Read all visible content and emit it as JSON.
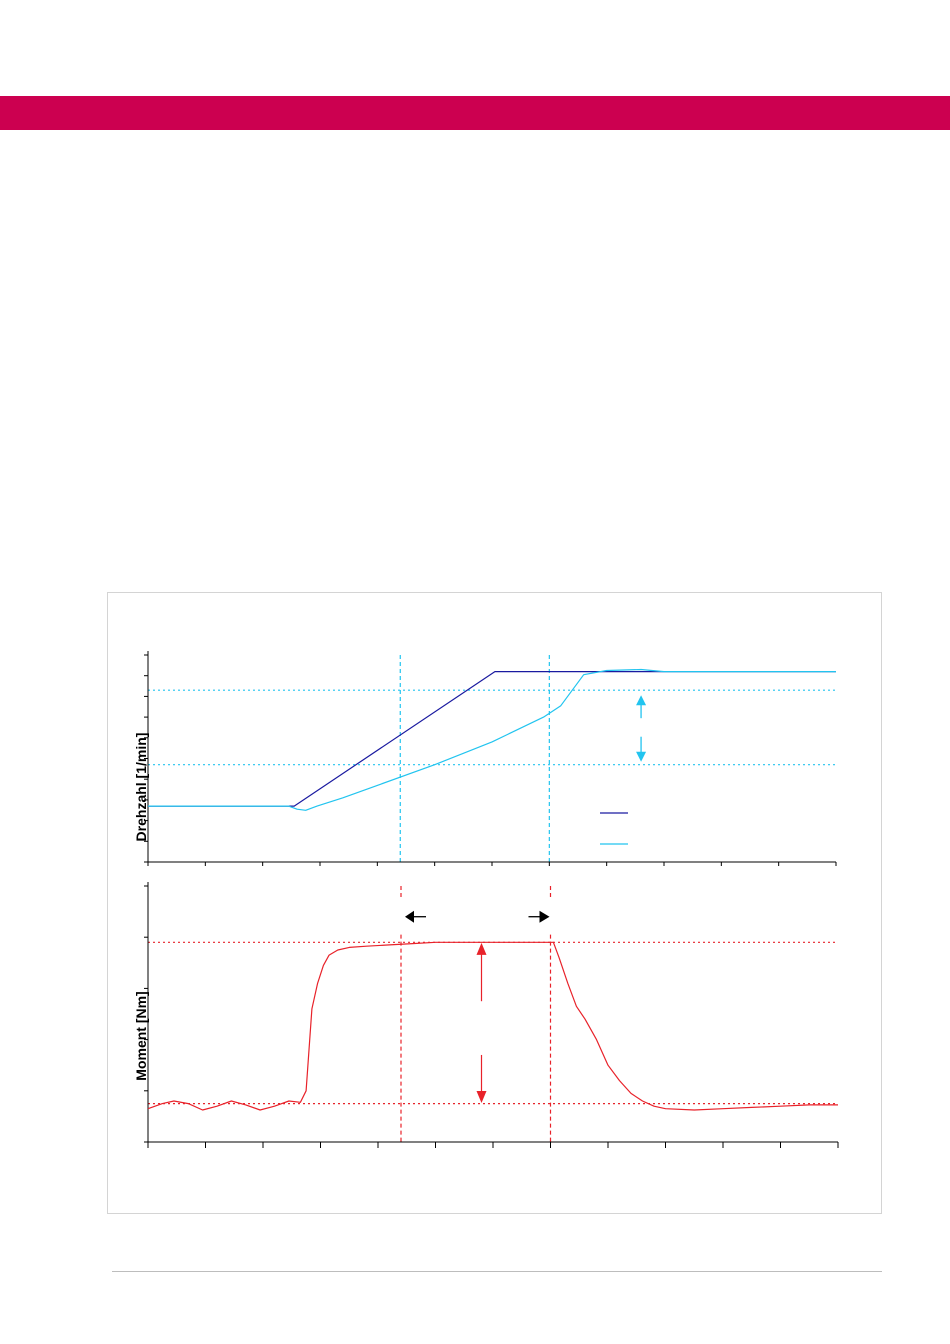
{
  "colors": {
    "brand": "#cc0050",
    "setpoint_speed": "#1a1aa0",
    "actual_speed": "#22c4ef",
    "torque": "#e8222a",
    "marker": "#000000"
  },
  "chart_data": [
    {
      "type": "line",
      "ylabel": "Drehzahl [1/min]",
      "xlabel": "",
      "xlim": [
        0,
        12
      ],
      "ylim": [
        0,
        1
      ],
      "grid": false,
      "legend": "middle-right (entries without text)",
      "series": [
        {
          "color": "#1a1aa0",
          "x": [
            0,
            2.55,
            6.05,
            12
          ],
          "y": [
            0.27,
            0.27,
            0.92,
            0.92
          ]
        },
        {
          "color": "#22c4ef",
          "x": [
            0,
            2.45,
            2.6,
            2.75,
            2.95,
            3.4,
            4.0,
            5.0,
            6.0,
            6.9,
            7.2,
            7.6,
            8.0,
            8.6,
            9.0,
            12
          ],
          "y": [
            0.27,
            0.27,
            0.255,
            0.25,
            0.27,
            0.31,
            0.37,
            0.47,
            0.58,
            0.7,
            0.755,
            0.905,
            0.925,
            0.93,
            0.92,
            0.92
          ]
        }
      ],
      "reference_lines": {
        "horizontal": [
          0.83,
          0.47
        ],
        "vertical": [
          4.4,
          7.0
        ]
      },
      "annotations": [
        {
          "type": "double-arrow",
          "x": 8.6,
          "y_from": 0.47,
          "y_to": 0.83
        }
      ]
    },
    {
      "type": "line",
      "ylabel": "Moment [Nm]",
      "xlabel": "",
      "xlim": [
        0,
        12
      ],
      "ylim": [
        0,
        1
      ],
      "grid": false,
      "series": [
        {
          "color": "#e8222a",
          "x": [
            0,
            0.25,
            0.45,
            0.7,
            0.95,
            1.2,
            1.45,
            1.7,
            1.95,
            2.2,
            2.45,
            2.65,
            2.75,
            2.85,
            2.95,
            3.05,
            3.15,
            3.3,
            3.5,
            3.8,
            4.2,
            4.6,
            5.0,
            5.5,
            6.0,
            6.5,
            7.0,
            7.05,
            7.15,
            7.3,
            7.45,
            7.6,
            7.8,
            8.0,
            8.2,
            8.4,
            8.6,
            8.8,
            9.0,
            9.5,
            10.0,
            10.5,
            11.0,
            11.5,
            12.0
          ],
          "y": [
            0.13,
            0.15,
            0.16,
            0.15,
            0.125,
            0.14,
            0.16,
            0.145,
            0.125,
            0.14,
            0.16,
            0.155,
            0.2,
            0.52,
            0.62,
            0.69,
            0.73,
            0.75,
            0.76,
            0.765,
            0.77,
            0.775,
            0.78,
            0.78,
            0.78,
            0.78,
            0.78,
            0.78,
            0.72,
            0.62,
            0.53,
            0.48,
            0.4,
            0.3,
            0.24,
            0.19,
            0.16,
            0.14,
            0.13,
            0.125,
            0.13,
            0.135,
            0.14,
            0.145,
            0.145
          ]
        }
      ],
      "reference_lines": {
        "horizontal": [
          0.78,
          0.15
        ],
        "vertical": [
          4.4,
          7.0
        ]
      },
      "annotations": [
        {
          "type": "arrow-left",
          "x": 4.4,
          "y": 0.88
        },
        {
          "type": "arrow-right",
          "x": 7.0,
          "y": 0.88
        },
        {
          "type": "arrow-up",
          "x": 5.8,
          "y_from": 0.55,
          "y_to": 0.77
        },
        {
          "type": "arrow-down",
          "x": 5.8,
          "y_from": 0.34,
          "y_to": 0.16
        }
      ]
    }
  ]
}
